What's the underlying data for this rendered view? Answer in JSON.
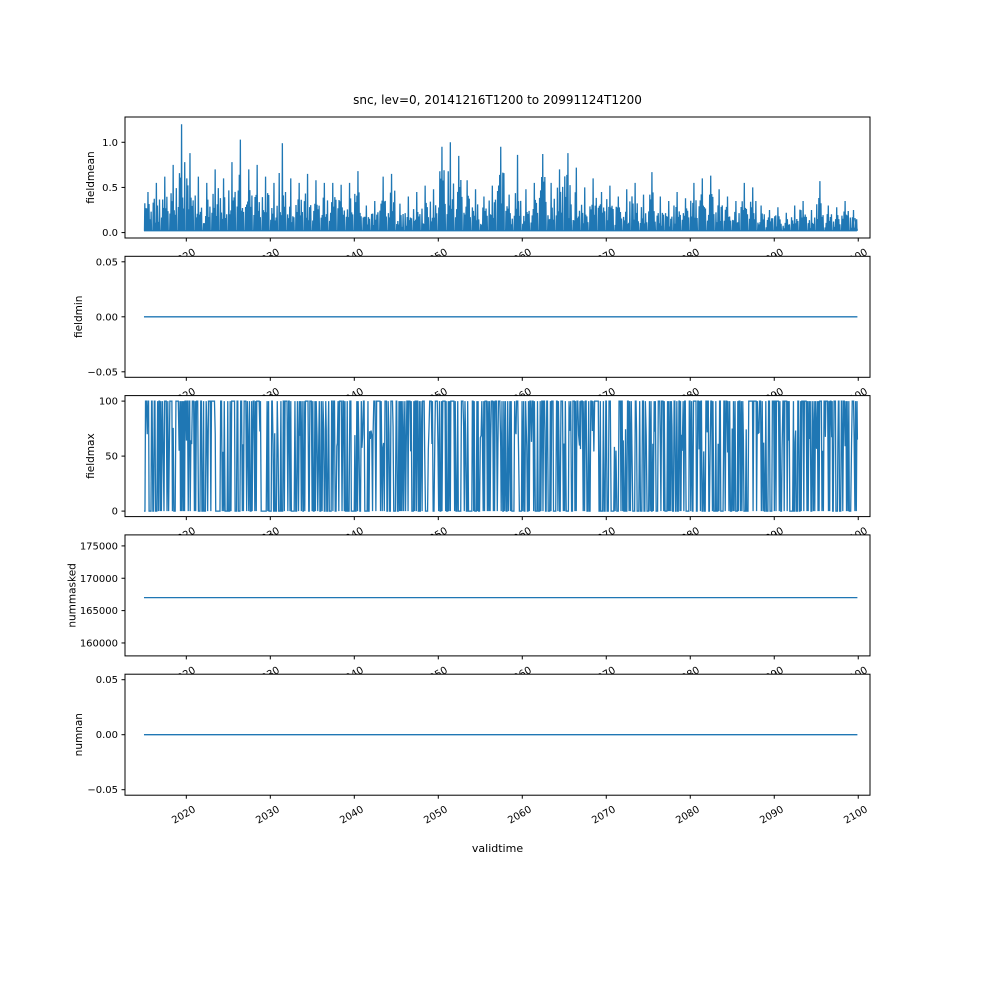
{
  "chart_meta": {
    "title": "snc, lev=0, 20141216T1200 to 20991124T1200",
    "xlabel": "validtime",
    "line_color": "#1f77b4",
    "axes_color": "#000000",
    "background_color": "#ffffff"
  },
  "x_axis": {
    "xlim": [
      2012.7,
      2101.4
    ],
    "tick_values": [
      2020,
      2030,
      2040,
      2050,
      2060,
      2070,
      2080,
      2090,
      2100
    ],
    "tick_labels": [
      "2020",
      "2030",
      "2040",
      "2050",
      "2060",
      "2070",
      "2080",
      "2090",
      "2100"
    ],
    "label_rotation_deg": 30,
    "data_start": 2014.96,
    "data_end": 2099.9
  },
  "chart_data": [
    {
      "type": "line",
      "name": "fieldmean",
      "ylabel": "fieldmean",
      "ylim": [
        -0.06,
        1.28
      ],
      "ytick_values": [
        0.0,
        0.5,
        1.0
      ],
      "ytick_labels": [
        "0.0",
        "0.5",
        "1.0"
      ],
      "series_kind": "annual-spikes",
      "baseline": 0.02,
      "peak_years_start": 2015,
      "annual_peaks": [
        0.45,
        0.55,
        0.62,
        0.75,
        1.2,
        0.88,
        0.62,
        0.55,
        0.7,
        0.6,
        0.78,
        1.03,
        0.7,
        0.75,
        0.62,
        0.55,
        0.99,
        0.6,
        0.55,
        0.65,
        0.58,
        0.55,
        0.55,
        0.53,
        0.55,
        0.68,
        0.3,
        0.35,
        0.62,
        0.65,
        0.32,
        0.4,
        0.45,
        0.52,
        0.48,
        0.95,
        1.0,
        0.85,
        0.58,
        0.48,
        0.4,
        0.52,
        0.95,
        0.42,
        0.86,
        0.48,
        0.55,
        0.87,
        0.55,
        0.7,
        0.88,
        0.72,
        0.5,
        0.6,
        0.45,
        0.52,
        0.4,
        0.48,
        0.55,
        0.42,
        0.67,
        0.4,
        0.35,
        0.45,
        0.38,
        0.55,
        0.6,
        0.63,
        0.48,
        0.4,
        0.35,
        0.55,
        0.5,
        0.3,
        0.25,
        0.28,
        0.22,
        0.3,
        0.35,
        0.25,
        0.57,
        0.3,
        0.28,
        0.35,
        0.25,
        0.2
      ],
      "max_value": 1.2,
      "min_value": 0.0
    },
    {
      "type": "line",
      "name": "fieldmin",
      "ylabel": "fieldmin",
      "ylim": [
        -0.055,
        0.055
      ],
      "ytick_values": [
        -0.05,
        0.0,
        0.05
      ],
      "ytick_labels": [
        "−0.05",
        "0.00",
        "0.05"
      ],
      "series_kind": "constant",
      "constant_value": 0.0
    },
    {
      "type": "line",
      "name": "fieldmax",
      "ylabel": "fieldmax",
      "ylim": [
        -5,
        105
      ],
      "ytick_values": [
        0,
        50,
        100
      ],
      "ytick_labels": [
        "0",
        "50",
        "100"
      ],
      "series_kind": "dense-oscillation",
      "osc_min": 0,
      "osc_max": 100,
      "osc_mid": 65
    },
    {
      "type": "line",
      "name": "nummasked",
      "ylabel": "nummasked",
      "ylim": [
        158000,
        176700
      ],
      "ytick_values": [
        160000,
        165000,
        170000,
        175000
      ],
      "ytick_labels": [
        "160000",
        "165000",
        "170000",
        "175000"
      ],
      "series_kind": "constant",
      "constant_value": 167000
    },
    {
      "type": "line",
      "name": "numnan",
      "ylabel": "numnan",
      "ylim": [
        -0.055,
        0.055
      ],
      "ytick_values": [
        -0.05,
        0.0,
        0.05
      ],
      "ytick_labels": [
        "−0.05",
        "0.00",
        "0.05"
      ],
      "series_kind": "constant",
      "constant_value": 0.0
    }
  ]
}
